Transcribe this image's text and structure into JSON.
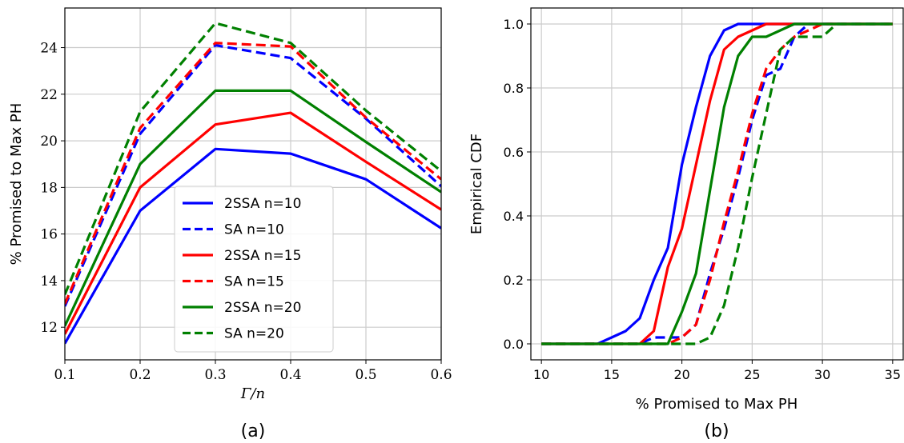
{
  "chart_data": [
    {
      "type": "line",
      "panel": "(a)",
      "xlabel": "Γ/n",
      "ylabel": "% Promised to Max PH",
      "xlim": [
        0.1,
        0.6
      ],
      "ylim": [
        10.6,
        25.7
      ],
      "xticks": [
        0.1,
        0.2,
        0.3,
        0.4,
        0.5,
        0.6
      ],
      "xtick_labels": [
        "0.1",
        "0.2",
        "0.3",
        "0.4",
        "0.5",
        "0.6"
      ],
      "yticks": [
        12,
        14,
        16,
        18,
        20,
        22,
        24
      ],
      "ytick_labels": [
        "12",
        "14",
        "16",
        "18",
        "20",
        "22",
        "24"
      ],
      "grid": true,
      "legend_position": "lower-center",
      "x": [
        0.1,
        0.2,
        0.3,
        0.4,
        0.5,
        0.6
      ],
      "series": [
        {
          "name": "2SSA n=10",
          "color": "#0000ff",
          "dash": "solid",
          "values": [
            11.3,
            17.0,
            19.65,
            19.45,
            18.35,
            16.25
          ]
        },
        {
          "name": "SA n=10",
          "color": "#0000ff",
          "dash": "dashed",
          "values": [
            12.9,
            20.3,
            24.1,
            23.55,
            20.95,
            18.05
          ]
        },
        {
          "name": "2SSA n=15",
          "color": "#ff0000",
          "dash": "solid",
          "values": [
            11.7,
            18.0,
            20.7,
            21.2,
            19.1,
            17.05
          ]
        },
        {
          "name": "SA n=15",
          "color": "#ff0000",
          "dash": "dashed",
          "values": [
            13.0,
            20.55,
            24.2,
            24.05,
            21.0,
            18.35
          ]
        },
        {
          "name": "2SSA n=20",
          "color": "#008000",
          "dash": "solid",
          "values": [
            12.05,
            19.0,
            22.15,
            22.15,
            19.95,
            17.8
          ]
        },
        {
          "name": "SA n=20",
          "color": "#008000",
          "dash": "dashed",
          "values": [
            13.4,
            21.25,
            25.05,
            24.2,
            21.3,
            18.7
          ]
        }
      ]
    },
    {
      "type": "line",
      "panel": "(b)",
      "xlabel": "% Promised to Max PH",
      "ylabel": "Empirical CDF",
      "xlim": [
        9.25,
        35.75
      ],
      "ylim": [
        -0.05,
        1.05
      ],
      "xticks": [
        10,
        15,
        20,
        25,
        30,
        35
      ],
      "xtick_labels": [
        "10",
        "15",
        "20",
        "25",
        "30",
        "35"
      ],
      "yticks": [
        0.0,
        0.2,
        0.4,
        0.6,
        0.8,
        1.0
      ],
      "ytick_labels": [
        "0.0",
        "0.2",
        "0.4",
        "0.6",
        "0.8",
        "1.0"
      ],
      "grid": true,
      "series": [
        {
          "name": "2SSA n=10",
          "color": "#0000ff",
          "dash": "solid",
          "points": [
            [
              10,
              0
            ],
            [
              14,
              0
            ],
            [
              15,
              0.02
            ],
            [
              16,
              0.04
            ],
            [
              17,
              0.08
            ],
            [
              18,
              0.2
            ],
            [
              19,
              0.3
            ],
            [
              20,
              0.56
            ],
            [
              21,
              0.74
            ],
            [
              22,
              0.9
            ],
            [
              23,
              0.98
            ],
            [
              24,
              1.0
            ],
            [
              35,
              1.0
            ]
          ]
        },
        {
          "name": "SA n=10",
          "color": "#0000ff",
          "dash": "dashed",
          "points": [
            [
              10,
              0
            ],
            [
              17,
              0
            ],
            [
              18,
              0.02
            ],
            [
              19,
              0.02
            ],
            [
              20,
              0.02
            ],
            [
              21,
              0.06
            ],
            [
              22,
              0.22
            ],
            [
              23,
              0.36
            ],
            [
              24,
              0.52
            ],
            [
              25,
              0.7
            ],
            [
              26,
              0.84
            ],
            [
              27,
              0.86
            ],
            [
              28,
              0.96
            ],
            [
              29,
              1.0
            ],
            [
              35,
              1.0
            ]
          ]
        },
        {
          "name": "2SSA n=15",
          "color": "#ff0000",
          "dash": "solid",
          "points": [
            [
              10,
              0
            ],
            [
              17,
              0
            ],
            [
              18,
              0.04
            ],
            [
              19,
              0.24
            ],
            [
              20,
              0.36
            ],
            [
              21,
              0.56
            ],
            [
              22,
              0.76
            ],
            [
              23,
              0.92
            ],
            [
              24,
              0.96
            ],
            [
              25,
              0.98
            ],
            [
              26,
              1.0
            ],
            [
              35,
              1.0
            ]
          ]
        },
        {
          "name": "SA n=15",
          "color": "#ff0000",
          "dash": "dashed",
          "points": [
            [
              10,
              0
            ],
            [
              19,
              0
            ],
            [
              20,
              0.02
            ],
            [
              21,
              0.06
            ],
            [
              22,
              0.2
            ],
            [
              23,
              0.38
            ],
            [
              24,
              0.54
            ],
            [
              25,
              0.72
            ],
            [
              26,
              0.86
            ],
            [
              27,
              0.92
            ],
            [
              28,
              0.96
            ],
            [
              29,
              0.98
            ],
            [
              30,
              1.0
            ],
            [
              35,
              1.0
            ]
          ]
        },
        {
          "name": "2SSA n=20",
          "color": "#008000",
          "dash": "solid",
          "points": [
            [
              10,
              0
            ],
            [
              19,
              0
            ],
            [
              20,
              0.1
            ],
            [
              21,
              0.22
            ],
            [
              22,
              0.48
            ],
            [
              23,
              0.74
            ],
            [
              24,
              0.9
            ],
            [
              25,
              0.96
            ],
            [
              26,
              0.96
            ],
            [
              27,
              0.98
            ],
            [
              28,
              1.0
            ],
            [
              35,
              1.0
            ]
          ]
        },
        {
          "name": "SA n=20",
          "color": "#008000",
          "dash": "dashed",
          "points": [
            [
              10,
              0
            ],
            [
              21,
              0
            ],
            [
              22,
              0.02
            ],
            [
              23,
              0.12
            ],
            [
              24,
              0.3
            ],
            [
              25,
              0.52
            ],
            [
              26,
              0.72
            ],
            [
              27,
              0.92
            ],
            [
              28,
              0.96
            ],
            [
              29,
              0.96
            ],
            [
              30,
              0.96
            ],
            [
              31,
              1.0
            ],
            [
              35,
              1.0
            ]
          ]
        }
      ]
    }
  ]
}
